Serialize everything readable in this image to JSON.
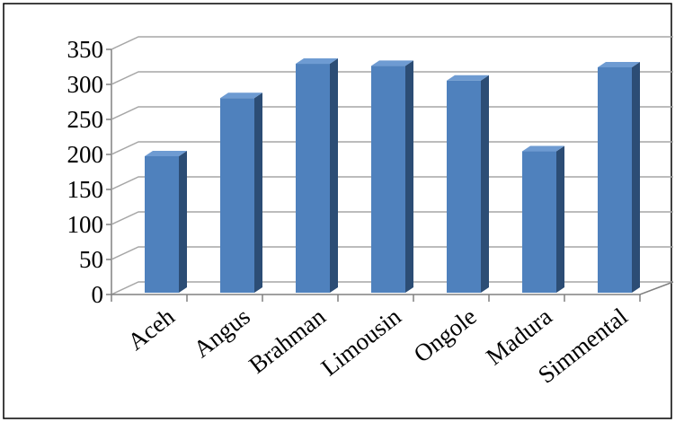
{
  "chart_data": {
    "type": "bar",
    "style": "3d-column",
    "title": "",
    "xlabel": "",
    "ylabel": "",
    "categories": [
      "Aceh",
      "Angus",
      "Brahman",
      "Limousin",
      "Ongole",
      "Madura",
      "Simmental"
    ],
    "values": [
      200,
      283,
      332,
      329,
      308,
      207,
      327
    ],
    "ylim": [
      0,
      350
    ],
    "yticks": [
      "0",
      "50",
      "100",
      "150",
      "200",
      "250",
      "300",
      "350"
    ],
    "grid": true,
    "legend": "none",
    "colors": {
      "bar_front": "#4f81bd",
      "bar_side": "#2c4d75",
      "bar_top": "#6e9bd2",
      "grid": "#a6a6a6",
      "axis": "#808080",
      "border": "#000000"
    }
  }
}
